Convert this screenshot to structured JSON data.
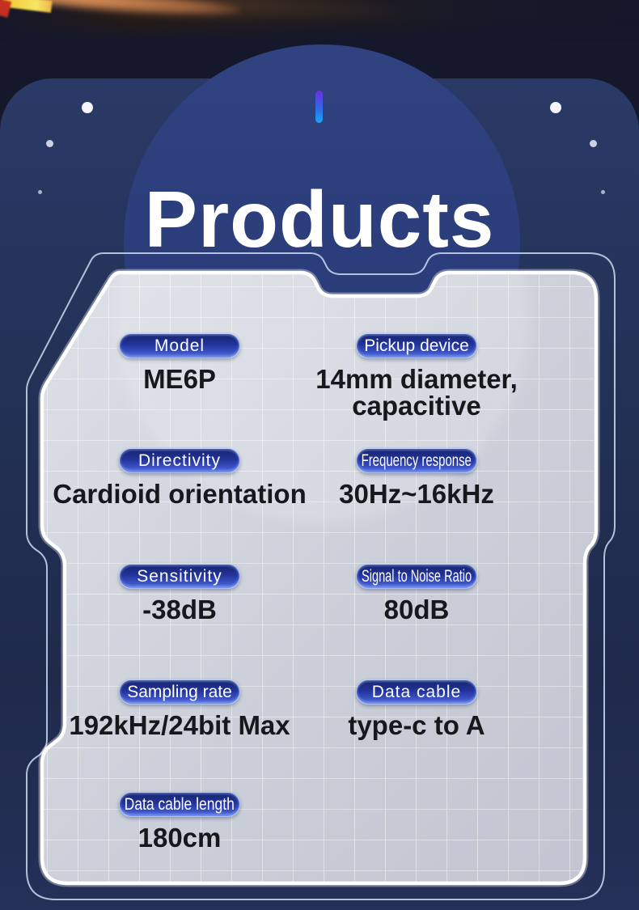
{
  "header": {
    "title": "Products"
  },
  "panel": {
    "rows": [
      {
        "left": {
          "label": "Model",
          "value": "ME6P"
        },
        "right": {
          "label": "Pickup device",
          "value": "14mm diameter,\ncapacitive"
        }
      },
      {
        "left": {
          "label": "Directivity",
          "value": "Cardioid orientation"
        },
        "right": {
          "label": "Frequency response",
          "value": "30Hz~16kHz"
        }
      },
      {
        "left": {
          "label": "Sensitivity",
          "value": "-38dB"
        },
        "right": {
          "label": "Signal to Noise Ratio",
          "value": "80dB"
        }
      },
      {
        "left": {
          "label": "Sampling rate",
          "value": "192kHz/24bit Max"
        },
        "right": {
          "label": "Data cable",
          "value": "type-c to A"
        }
      },
      {
        "left": {
          "label": "Data cable length",
          "value": "180cm"
        },
        "right": null
      }
    ]
  },
  "colors": {
    "background": "#15172b",
    "card": "#233156",
    "circle": "#2b3d7a",
    "panel_fill": "#cdd0da",
    "pill_gradient_top": "#17236b",
    "pill_gradient_bottom": "#5a74e2",
    "pill_text": "#ffffff",
    "value_text": "#17181c",
    "accent_tick_top": "#6d2fe0",
    "accent_tick_bottom": "#19a8f2"
  }
}
